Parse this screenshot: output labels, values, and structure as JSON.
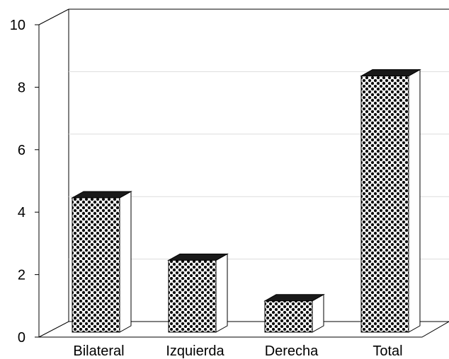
{
  "chart_data": {
    "type": "bar",
    "style": "3d",
    "fill_pattern": "dots",
    "categories": [
      "Bilateral",
      "Izquierda",
      "Derecha",
      "Total"
    ],
    "values": [
      4.3,
      2.3,
      1.0,
      8.2
    ],
    "title": "",
    "xlabel": "",
    "ylabel": "",
    "ylim": [
      0,
      10
    ],
    "yticks": [
      "0",
      "2",
      "4",
      "6",
      "8",
      "10"
    ],
    "grid": true,
    "legend": "none"
  }
}
